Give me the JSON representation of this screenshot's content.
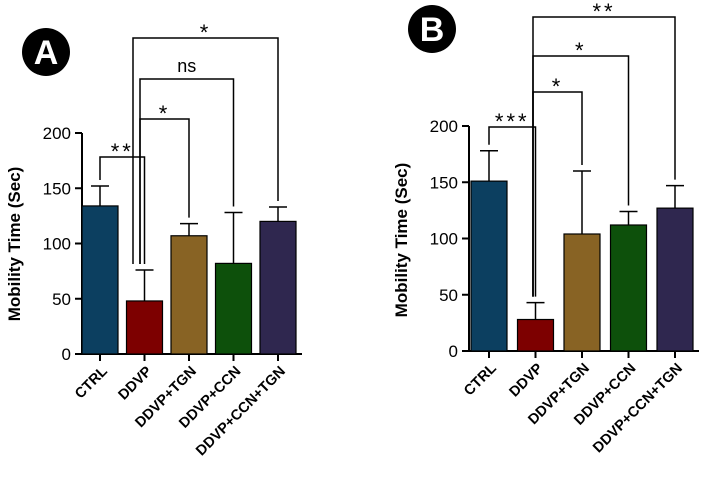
{
  "chart_data": [
    {
      "type": "bar",
      "panel": "A",
      "ylabel": "Mobility Time (Sec)",
      "xlabel": "",
      "ylim": [
        0,
        200
      ],
      "yticks": [
        "0",
        "50",
        "100",
        "150",
        "200"
      ],
      "categories": [
        "CTRL",
        "DDVP",
        "DDVP+TGN",
        "DDVP+CCN",
        "DDVP+CCN+TGN"
      ],
      "values": [
        134,
        48,
        107,
        82,
        120
      ],
      "errors": [
        18,
        28,
        11,
        46,
        13
      ],
      "colors": [
        "#0c3f60",
        "#7d0000",
        "#886324",
        "#0d500b",
        "#2f274f"
      ],
      "comparisons": [
        {
          "from": 0,
          "to": 1,
          "label": "**"
        },
        {
          "from": 1,
          "to": 2,
          "label": "*"
        },
        {
          "from": 1,
          "to": 3,
          "label": "ns"
        },
        {
          "from": 1,
          "to": 4,
          "label": "*"
        }
      ]
    },
    {
      "type": "bar",
      "panel": "B",
      "ylabel": "Mobility Time (Sec)",
      "xlabel": "",
      "ylim": [
        0,
        200
      ],
      "yticks": [
        "0",
        "50",
        "100",
        "150",
        "200"
      ],
      "categories": [
        "CTRL",
        "DDVP",
        "DDVP+TGN",
        "DDVP+CCN",
        "DDVP+CCN+TGN"
      ],
      "values": [
        151,
        28,
        104,
        112,
        127
      ],
      "errors": [
        27,
        15,
        56,
        12,
        20
      ],
      "colors": [
        "#0c3f60",
        "#7d0000",
        "#886324",
        "#0d500b",
        "#2f274f"
      ],
      "comparisons": [
        {
          "from": 0,
          "to": 1,
          "label": "***"
        },
        {
          "from": 1,
          "to": 2,
          "label": "*"
        },
        {
          "from": 1,
          "to": 3,
          "label": "*"
        },
        {
          "from": 1,
          "to": 4,
          "label": "**"
        }
      ]
    }
  ]
}
